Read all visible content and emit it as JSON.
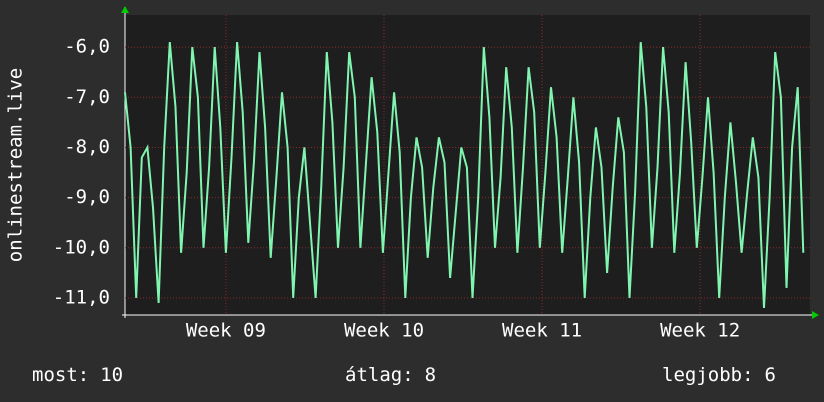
{
  "chart_data": {
    "type": "line",
    "ylabel": "onlinestream.live",
    "x": [
      0,
      0.25,
      0.5,
      0.75,
      1,
      1.25,
      1.5,
      1.75,
      2,
      2.25,
      2.5,
      2.75,
      3,
      3.25,
      3.5,
      3.75,
      4,
      4.25,
      4.5,
      4.75,
      5,
      5.25,
      5.5,
      5.75,
      6,
      6.25,
      6.5,
      6.75,
      7,
      7.25,
      7.5,
      7.75,
      8,
      8.25,
      8.5,
      8.75,
      9,
      9.25,
      9.5,
      9.75,
      10,
      10.25,
      10.5,
      10.75,
      11,
      11.25,
      11.5,
      11.75,
      12,
      12.25,
      12.5,
      12.75,
      13,
      13.25,
      13.5,
      13.75,
      14,
      14.25,
      14.5,
      14.75,
      15,
      15.25,
      15.5,
      15.75,
      16,
      16.25,
      16.5,
      16.75,
      17,
      17.25,
      17.5,
      17.75,
      18,
      18.25,
      18.5,
      18.75,
      19,
      19.25,
      19.5,
      19.75,
      20,
      20.25,
      20.5,
      20.75,
      21,
      21.25,
      21.5,
      21.75,
      22,
      22.25,
      22.5,
      22.75,
      23,
      23.25,
      23.5,
      23.75,
      24,
      24.25,
      24.5,
      24.75,
      25,
      25.25,
      25.5,
      25.75,
      26,
      26.25,
      26.5,
      26.75,
      27,
      27.25,
      27.5,
      27.75,
      28,
      28.25,
      28.5,
      28.75,
      29,
      29.25,
      29.5,
      29.75,
      30,
      30.25
    ],
    "values": [
      -6.9,
      -8.0,
      -11.0,
      -8.2,
      -8.0,
      -9.2,
      -11.1,
      -8.0,
      -5.9,
      -7.2,
      -10.1,
      -8.5,
      -6.0,
      -7.0,
      -10.0,
      -8.4,
      -6.0,
      -7.6,
      -10.1,
      -8.2,
      -5.9,
      -7.3,
      -9.9,
      -8.3,
      -6.1,
      -7.6,
      -10.2,
      -8.6,
      -6.9,
      -8.0,
      -11.0,
      -9.0,
      -8.0,
      -9.5,
      -11.0,
      -8.8,
      -6.1,
      -7.5,
      -10.0,
      -8.4,
      -6.1,
      -7.0,
      -10.0,
      -8.3,
      -6.6,
      -7.7,
      -10.1,
      -8.5,
      -6.9,
      -8.1,
      -11.0,
      -9.0,
      -7.8,
      -8.4,
      -10.2,
      -8.8,
      -7.8,
      -8.3,
      -10.6,
      -9.3,
      -8.0,
      -8.4,
      -11.0,
      -9.0,
      -6.0,
      -7.4,
      -10.0,
      -8.6,
      -6.4,
      -7.6,
      -10.1,
      -8.4,
      -6.4,
      -7.3,
      -10.0,
      -8.5,
      -6.8,
      -7.8,
      -10.1,
      -8.6,
      -7.0,
      -8.3,
      -11.0,
      -9.0,
      -7.6,
      -8.4,
      -10.5,
      -8.8,
      -7.4,
      -8.1,
      -11.0,
      -8.9,
      -5.9,
      -7.2,
      -10.0,
      -8.4,
      -6.0,
      -7.3,
      -10.1,
      -8.5,
      -6.3,
      -7.9,
      -10.0,
      -8.6,
      -7.0,
      -8.5,
      -11.0,
      -9.0,
      -7.5,
      -8.7,
      -10.1,
      -8.9,
      -7.8,
      -8.6,
      -11.2,
      -9.0,
      -6.1,
      -7.0,
      -10.8,
      -8.0,
      -6.8,
      -10.1
    ],
    "color": "#80f5b0",
    "xlim": [
      0,
      30.55
    ],
    "ylim": [
      -11.34,
      -5.36
    ],
    "xticks": [
      {
        "value": 4.5,
        "label": "Week 09"
      },
      {
        "value": 11.55,
        "label": "Week 10"
      },
      {
        "value": 18.6,
        "label": "Week 11"
      },
      {
        "value": 25.65,
        "label": "Week 12"
      }
    ],
    "yticks": [
      {
        "value": -6,
        "label": "-6,0"
      },
      {
        "value": -7,
        "label": "-7,0"
      },
      {
        "value": -8,
        "label": "-8,0"
      },
      {
        "value": -9,
        "label": "-9,0"
      },
      {
        "value": -10,
        "label": "-10,0"
      },
      {
        "value": -11,
        "label": "-11,0"
      }
    ],
    "grid": true
  },
  "stats": [
    {
      "label": "most:",
      "value": 10
    },
    {
      "label": "átlag:",
      "value": 8
    },
    {
      "label": "legjobb:",
      "value": 6
    }
  ]
}
